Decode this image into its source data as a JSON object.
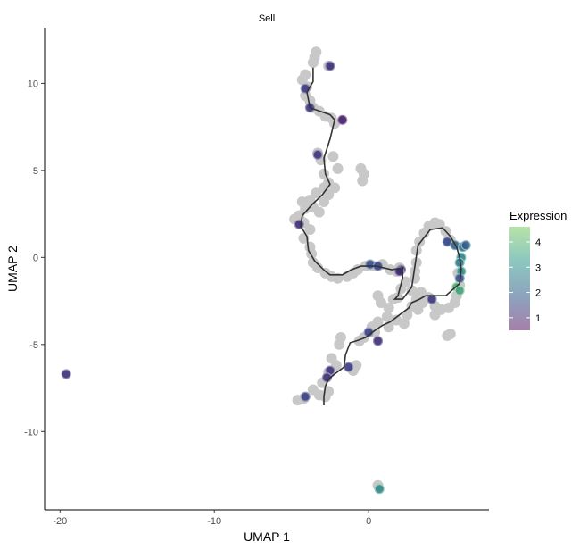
{
  "chart_data": {
    "type": "scatter",
    "title": "Sell",
    "xlabel": "UMAP 1",
    "ylabel": "UMAP 2",
    "xlim": [
      -21,
      7.8
    ],
    "ylim": [
      -14.5,
      13.2
    ],
    "xticks": [
      -20,
      -10,
      0
    ],
    "yticks": [
      10,
      5,
      0,
      -5,
      -10
    ],
    "grid": false,
    "legend": {
      "title": "Expression",
      "position": "right",
      "ticks": [
        1,
        2,
        3,
        4
      ],
      "range": [
        0.5,
        4.6
      ],
      "colors": [
        "#a67fa9",
        "#8ca4be",
        "#8cc7bf",
        "#b6e3a7"
      ]
    },
    "background_points": [
      [
        -3.5,
        11.5
      ],
      [
        -3.4,
        11.8
      ],
      [
        -3.6,
        11.2
      ],
      [
        -2.6,
        11.0
      ],
      [
        -4.1,
        10.5
      ],
      [
        -4.3,
        10.2
      ],
      [
        -4.0,
        9.8
      ],
      [
        -4.1,
        9.3
      ],
      [
        -3.8,
        9.0
      ],
      [
        -3.6,
        8.6
      ],
      [
        -3.2,
        8.4
      ],
      [
        -2.8,
        8.1
      ],
      [
        -2.4,
        8.0
      ],
      [
        -2.2,
        7.7
      ],
      [
        -3.3,
        6.0
      ],
      [
        -3.1,
        5.6
      ],
      [
        -2.9,
        4.8
      ],
      [
        -2.6,
        4.3
      ],
      [
        -2.9,
        4.0
      ],
      [
        -2.6,
        3.6
      ],
      [
        -2.2,
        4.0
      ],
      [
        -2.0,
        5.1
      ],
      [
        -2.3,
        5.8
      ],
      [
        -0.5,
        5.1
      ],
      [
        -0.3,
        4.8
      ],
      [
        -0.4,
        4.4
      ],
      [
        -3.4,
        3.7
      ],
      [
        -3.8,
        3.3
      ],
      [
        -4.3,
        3.2
      ],
      [
        -4.1,
        2.8
      ],
      [
        -3.6,
        2.9
      ],
      [
        -2.9,
        3.2
      ],
      [
        -3.2,
        2.6
      ],
      [
        -4.5,
        2.4
      ],
      [
        -4.8,
        2.2
      ],
      [
        -4.2,
        2.0
      ],
      [
        -3.8,
        1.6
      ],
      [
        -4.2,
        1.1
      ],
      [
        -3.8,
        0.6
      ],
      [
        -3.7,
        0.2
      ],
      [
        -3.6,
        -0.3
      ],
      [
        -3.3,
        -0.6
      ],
      [
        -2.8,
        -0.9
      ],
      [
        -2.4,
        -1.1
      ],
      [
        -2.0,
        -1.2
      ],
      [
        -1.4,
        -1.1
      ],
      [
        -1.0,
        -0.9
      ],
      [
        -0.7,
        -0.7
      ],
      [
        -0.2,
        -0.5
      ],
      [
        0.3,
        -0.5
      ],
      [
        0.9,
        -0.4
      ],
      [
        1.4,
        -0.7
      ],
      [
        1.8,
        -0.8
      ],
      [
        2.0,
        -0.6
      ],
      [
        2.4,
        -1.4
      ],
      [
        2.1,
        -1.8
      ],
      [
        1.9,
        -2.3
      ],
      [
        0.6,
        -2.2
      ],
      [
        0.8,
        -2.6
      ],
      [
        1.3,
        -2.9
      ],
      [
        1.6,
        -2.4
      ],
      [
        3.0,
        -1.2
      ],
      [
        2.8,
        -1.9
      ],
      [
        3.1,
        -2.4
      ],
      [
        3.4,
        -2.0
      ],
      [
        2.8,
        -2.8
      ],
      [
        3.2,
        -3.0
      ],
      [
        3.5,
        -2.6
      ],
      [
        3.9,
        -2.3
      ],
      [
        4.3,
        -2.8
      ],
      [
        4.7,
        -3.0
      ],
      [
        4.3,
        -3.3
      ],
      [
        5.2,
        -2.9
      ],
      [
        5.6,
        -2.6
      ],
      [
        5.7,
        -2.2
      ],
      [
        5.9,
        -1.6
      ],
      [
        5.8,
        -0.9
      ],
      [
        3.1,
        0.4
      ],
      [
        3.3,
        0.9
      ],
      [
        3.6,
        1.4
      ],
      [
        3.9,
        1.8
      ],
      [
        4.3,
        2.0
      ],
      [
        4.6,
        1.9
      ],
      [
        5.0,
        1.5
      ],
      [
        5.3,
        1.0
      ],
      [
        3.1,
        -0.3
      ],
      [
        3.0,
        -0.8
      ],
      [
        2.5,
        -3.3
      ],
      [
        2.3,
        -3.8
      ],
      [
        1.8,
        -3.6
      ],
      [
        1.2,
        -3.4
      ],
      [
        0.6,
        -3.7
      ],
      [
        0.2,
        -4.0
      ],
      [
        0.4,
        -4.3
      ],
      [
        1.3,
        -4.0
      ],
      [
        -0.3,
        -4.6
      ],
      [
        -0.6,
        -4.8
      ],
      [
        5.1,
        -4.5
      ],
      [
        5.3,
        -4.4
      ],
      [
        -1.8,
        -4.6
      ],
      [
        -1.9,
        -5.0
      ],
      [
        -2.4,
        -5.8
      ],
      [
        -2.1,
        -6.2
      ],
      [
        -2.6,
        -6.6
      ],
      [
        -3.0,
        -7.2
      ],
      [
        -3.6,
        -7.6
      ],
      [
        -4.2,
        -8.1
      ],
      [
        -4.6,
        -8.2
      ],
      [
        -2.8,
        -8.0
      ],
      [
        -2.6,
        -7.7
      ],
      [
        -3.2,
        -7.9
      ],
      [
        -1.0,
        -6.5
      ],
      [
        -0.8,
        -6.2
      ],
      [
        0.6,
        -13.1
      ]
    ],
    "colored_points": [
      {
        "x": -2.5,
        "y": 11.0,
        "value": 1.2
      },
      {
        "x": -4.1,
        "y": 9.7,
        "value": 1.5
      },
      {
        "x": -3.8,
        "y": 8.6,
        "value": 1.4
      },
      {
        "x": -1.7,
        "y": 7.9,
        "value": 0.6
      },
      {
        "x": -3.3,
        "y": 5.9,
        "value": 1.3
      },
      {
        "x": -4.5,
        "y": 1.9,
        "value": 1.1
      },
      {
        "x": 0.1,
        "y": -0.4,
        "value": 2.0
      },
      {
        "x": 0.6,
        "y": -0.5,
        "value": 1.7
      },
      {
        "x": 2.1,
        "y": -0.7,
        "value": 1.3
      },
      {
        "x": 5.1,
        "y": 0.9,
        "value": 1.8
      },
      {
        "x": 5.6,
        "y": 0.7,
        "value": 2.5
      },
      {
        "x": 6.1,
        "y": 0.6,
        "value": 2.7
      },
      {
        "x": 6.3,
        "y": 0.7,
        "value": 2.4
      },
      {
        "x": 6.0,
        "y": 0.0,
        "value": 3.2
      },
      {
        "x": 5.9,
        "y": -0.3,
        "value": 3.0
      },
      {
        "x": 6.0,
        "y": -0.8,
        "value": 3.5
      },
      {
        "x": 5.9,
        "y": -1.2,
        "value": 2.0
      },
      {
        "x": 5.7,
        "y": -1.7,
        "value": 4.4
      },
      {
        "x": 5.9,
        "y": -1.9,
        "value": 4.1
      },
      {
        "x": 4.1,
        "y": -2.4,
        "value": 1.4
      },
      {
        "x": 2.0,
        "y": -0.8,
        "value": 1.0
      },
      {
        "x": 0.0,
        "y": -4.3,
        "value": 1.6
      },
      {
        "x": 0.6,
        "y": -4.8,
        "value": 1.1
      },
      {
        "x": -2.5,
        "y": -6.5,
        "value": 1.3
      },
      {
        "x": -2.7,
        "y": -6.9,
        "value": 1.2
      },
      {
        "x": -1.3,
        "y": -6.3,
        "value": 1.5
      },
      {
        "x": -4.1,
        "y": -8.0,
        "value": 1.6
      },
      {
        "x": -19.6,
        "y": -6.7,
        "value": 1.2
      },
      {
        "x": 0.7,
        "y": -13.3,
        "value": 3.4
      }
    ],
    "trajectory": [
      [
        -3.6,
        10.9
      ],
      [
        -3.6,
        10.1
      ],
      [
        -4.0,
        9.5
      ],
      [
        -3.8,
        8.6
      ],
      [
        -2.5,
        8.2
      ],
      [
        -2.2,
        7.9
      ],
      [
        -2.5,
        6.8
      ],
      [
        -2.9,
        5.7
      ],
      [
        -2.8,
        4.8
      ],
      [
        -2.5,
        4.2
      ],
      [
        -3.0,
        3.6
      ],
      [
        -3.7,
        3.0
      ],
      [
        -4.3,
        2.4
      ],
      [
        -4.4,
        1.8
      ],
      [
        -4.0,
        1.2
      ],
      [
        -3.9,
        0.4
      ],
      [
        -3.5,
        -0.2
      ],
      [
        -2.8,
        -0.8
      ],
      [
        -2.5,
        -1.0
      ],
      [
        -1.7,
        -1.0
      ],
      [
        -1.1,
        -0.7
      ],
      [
        -0.5,
        -0.5
      ],
      [
        0.5,
        -0.5
      ],
      [
        1.5,
        -0.7
      ],
      [
        2.2,
        -0.6
      ],
      [
        2.2,
        -1.2
      ],
      [
        1.9,
        -2.2
      ],
      [
        1.7,
        -2.4
      ],
      [
        2.2,
        -2.4
      ],
      [
        2.8,
        -1.7
      ],
      [
        3.0,
        -0.5
      ],
      [
        3.2,
        0.7
      ],
      [
        4.0,
        1.6
      ],
      [
        4.8,
        1.7
      ],
      [
        5.3,
        1.2
      ],
      [
        5.7,
        0.6
      ],
      [
        5.9,
        0.0
      ],
      [
        6.0,
        -0.7
      ],
      [
        5.9,
        -1.5
      ],
      [
        5.0,
        -2.2
      ],
      [
        4.5,
        -2.2
      ],
      [
        3.7,
        -2.2
      ],
      [
        3.3,
        -2.4
      ],
      [
        2.8,
        -2.6
      ],
      [
        2.6,
        -2.9
      ],
      [
        2.0,
        -3.3
      ],
      [
        1.4,
        -3.7
      ],
      [
        0.9,
        -3.9
      ],
      [
        0.4,
        -4.2
      ],
      [
        -0.2,
        -4.6
      ],
      [
        -0.8,
        -4.8
      ],
      [
        -1.2,
        -4.9
      ],
      [
        -1.5,
        -5.6
      ],
      [
        -1.6,
        -6.3
      ],
      [
        -1.9,
        -6.5
      ],
      [
        -2.2,
        -6.7
      ],
      [
        -2.6,
        -7.0
      ],
      [
        -2.8,
        -7.4
      ],
      [
        -2.9,
        -8.0
      ],
      [
        -2.9,
        -8.5
      ]
    ]
  }
}
